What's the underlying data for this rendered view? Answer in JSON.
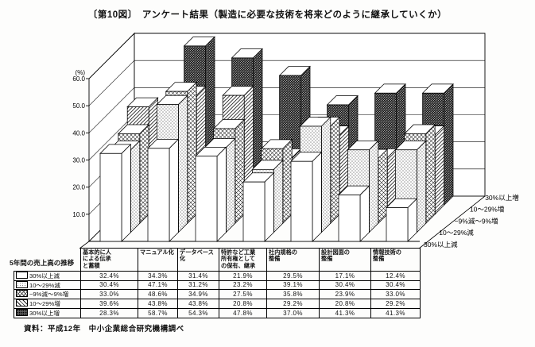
{
  "title": "〔第10図〕　アンケート結果（製造に必要な技術を将来どのように継承していくか）",
  "source": "資料：平成12年　中小企業総合研究機構調べ",
  "chart_data": {
    "type": "bar",
    "projection": "3d-oblique",
    "title": "アンケート結果（製造に必要な技術を将来どのように継承していくか）",
    "unit_label": "(%)",
    "ylabel": "%",
    "ylim": [
      0,
      60
    ],
    "grid": true,
    "ytick_labels": [
      "10.0",
      "20.0",
      "30.0",
      "40.0",
      "50.0",
      "60.0"
    ],
    "yticks": [
      10,
      20,
      30,
      40,
      50,
      60
    ],
    "categories": [
      "基本的に人による伝承と蓄積",
      "マニュアル化",
      "データベース化",
      "特許など工業所有権としての保有、継承",
      "社内規格の整備",
      "設計図面の整備",
      "情報技術の整備"
    ],
    "series": [
      {
        "name": "30%以上減",
        "pattern": "white",
        "values": [
          32.4,
          34.3,
          31.4,
          21.9,
          29.5,
          17.1,
          12.4
        ]
      },
      {
        "name": "10〜29%減",
        "pattern": "stipple-light",
        "values": [
          30.4,
          47.1,
          31.2,
          23.2,
          39.1,
          30.4,
          30.4
        ]
      },
      {
        "name": "−9%減〜9%増",
        "pattern": "crosshatch",
        "values": [
          33.0,
          48.6,
          34.9,
          27.5,
          35.8,
          23.9,
          33.0
        ]
      },
      {
        "name": "10〜29%増",
        "pattern": "diagonal",
        "values": [
          39.6,
          43.8,
          43.8,
          20.8,
          29.2,
          20.8,
          29.2
        ]
      },
      {
        "name": "30%以上増",
        "pattern": "stipple-dark",
        "values": [
          28.3,
          58.7,
          54.3,
          47.8,
          37.0,
          41.3,
          41.3
        ]
      }
    ],
    "depth_axis_order": "front(30%以上減) → back(30%以上増)",
    "legend_position": "depth-axis-right"
  },
  "table": {
    "row_header_title": "5年間の売上高の推移",
    "column_headers": [
      [
        "基本的に人",
        "による伝承",
        "と蓄積"
      ],
      [
        "マニュアル化"
      ],
      [
        "データベース",
        "化"
      ],
      [
        "特許など工業",
        "所有権として",
        "の保有、継承"
      ],
      [
        "社内規格の",
        "整備"
      ],
      [
        "設計図面の",
        "整備"
      ],
      [
        "情報技術の",
        "整備"
      ]
    ],
    "value_suffix": "%"
  }
}
